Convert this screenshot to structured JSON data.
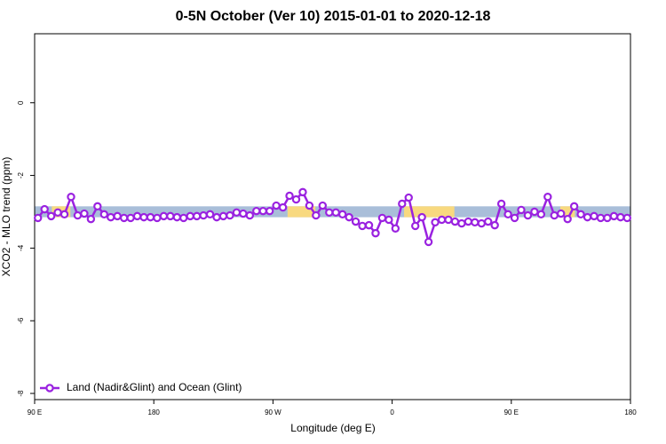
{
  "chart_data": {
    "type": "line",
    "title": "0-5N October (Ver 10)   2015-01-01 to 2020-12-18",
    "x_label": "Longitude (deg E)",
    "y_label": "XCO2 - MLO trend (ppm)",
    "xlim": [
      90,
      540
    ],
    "ylim": [
      -8.17,
      1.9
    ],
    "xticks": [
      {
        "value": 90,
        "label": "90 E"
      },
      180,
      {
        "value": 270,
        "label": "90 W"
      },
      {
        "value": 360,
        "label": "0"
      },
      {
        "value": 450,
        "label": "90 E"
      },
      {
        "value": 540,
        "label": "180"
      }
    ],
    "yticks": [
      0,
      -2,
      -4,
      -6,
      -8
    ],
    "band": {
      "range": [
        -3.15,
        -2.85
      ],
      "color": "#a9bed9",
      "highlight_color": "#f8d97f",
      "highlights": [
        [
          103,
          117
        ],
        [
          281,
          302
        ],
        [
          369,
          407
        ],
        [
          487,
          498
        ]
      ]
    },
    "legend": "bottom-left",
    "x": [
      92.5,
      97.5,
      102.5,
      107.5,
      112.5,
      117.5,
      122.5,
      127.5,
      132.5,
      137.5,
      142.5,
      147.5,
      152.5,
      157.5,
      162.5,
      167.5,
      172.5,
      177.5,
      182.5,
      187.5,
      192.5,
      197.5,
      202.5,
      207.5,
      212.5,
      217.5,
      222.5,
      227.5,
      232.5,
      237.5,
      242.5,
      247.5,
      252.5,
      257.5,
      262.5,
      267.5,
      272.5,
      277.5,
      282.5,
      287.5,
      292.5,
      297.5,
      302.5,
      307.5,
      312.5,
      317.5,
      322.5,
      327.5,
      332.5,
      337.5,
      342.5,
      347.5,
      352.5,
      357.5,
      362.5,
      367.5,
      372.5,
      377.5,
      382.5,
      387.5,
      392.5,
      397.5,
      402.5,
      407.5,
      412.5,
      417.5,
      422.5,
      427.5,
      432.5,
      437.5,
      442.5,
      447.5,
      452.5,
      457.5,
      462.5,
      467.5,
      472.5,
      477.5,
      482.5,
      487.5,
      492.5,
      497.5,
      502.5,
      507.5,
      512.5,
      517.5,
      522.5,
      527.5,
      532.5,
      537.5
    ],
    "series": [
      {
        "name": "Land (Nadir&Glint) and Ocean (Glint)",
        "color": "#9a22e0",
        "values": [
          -3.17,
          -2.93,
          -3.12,
          -3.02,
          -3.07,
          -2.59,
          -3.1,
          -3.05,
          -3.2,
          -2.85,
          -3.07,
          -3.15,
          -3.12,
          -3.17,
          -3.17,
          -3.12,
          -3.15,
          -3.15,
          -3.17,
          -3.12,
          -3.12,
          -3.15,
          -3.17,
          -3.12,
          -3.12,
          -3.1,
          -3.07,
          -3.15,
          -3.12,
          -3.1,
          -3.02,
          -3.05,
          -3.1,
          -2.98,
          -2.98,
          -2.98,
          -2.83,
          -2.88,
          -2.56,
          -2.66,
          -2.46,
          -2.83,
          -3.1,
          -2.83,
          -3.02,
          -3.02,
          -3.07,
          -3.15,
          -3.27,
          -3.39,
          -3.37,
          -3.59,
          -3.17,
          -3.22,
          -3.46,
          -2.78,
          -2.61,
          -3.39,
          -3.15,
          -3.83,
          -3.29,
          -3.22,
          -3.22,
          -3.27,
          -3.32,
          -3.27,
          -3.29,
          -3.32,
          -3.27,
          -3.37,
          -2.78,
          -3.07,
          -3.17,
          -2.95,
          -3.1,
          -3.0,
          -3.07,
          -2.59,
          -3.1,
          -3.05,
          -3.2,
          -2.85,
          -3.07,
          -3.15,
          -3.12,
          -3.17,
          -3.17,
          -3.12,
          -3.15,
          -3.17
        ]
      }
    ]
  }
}
